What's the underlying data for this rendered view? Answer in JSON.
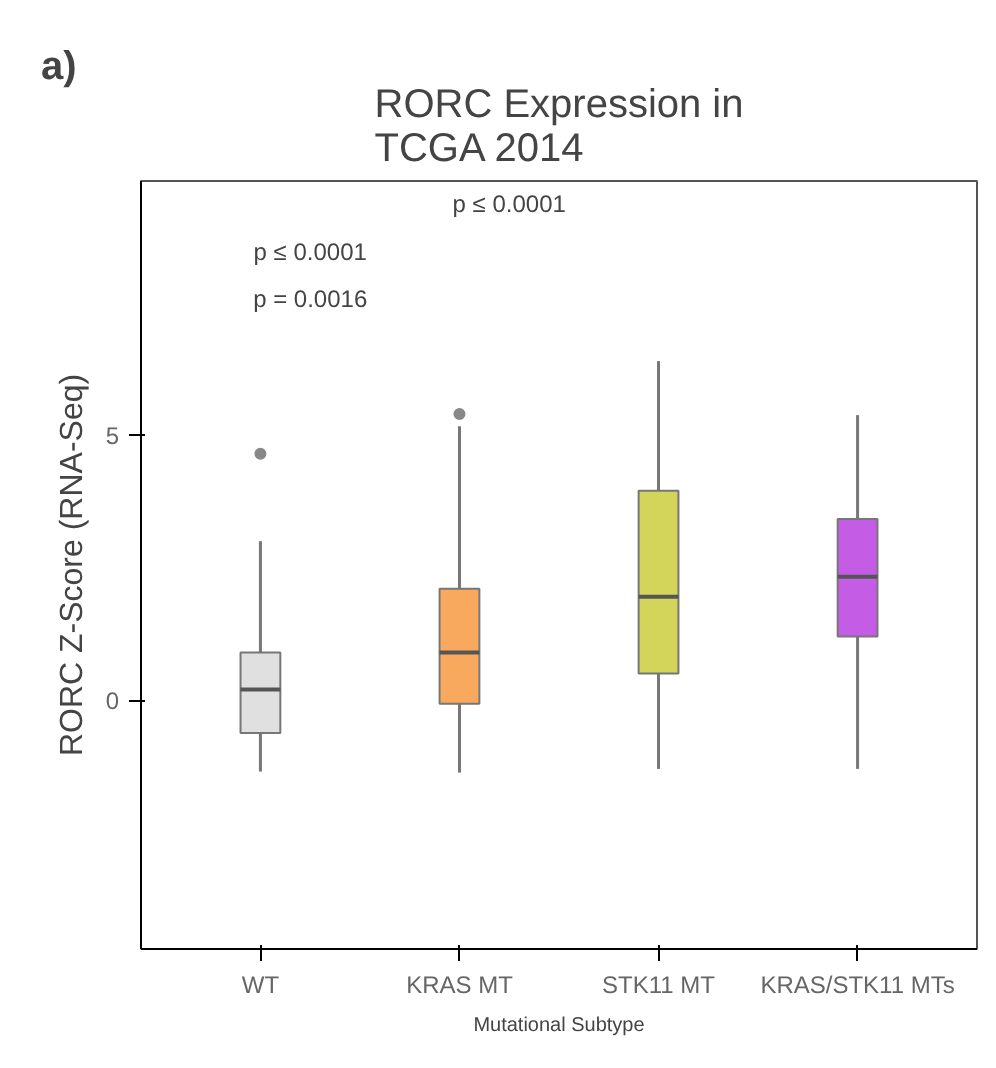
{
  "chart_data": {
    "type": "box",
    "title": "RORC Expression in\nTCGA 2014",
    "xlabel": "Mutational Subtype",
    "ylabel": "RORC Z-Score (RNA-Seq)",
    "categories": [
      "WT",
      "KRAS MT",
      "STK11 MT",
      "KRAS/STK11 MTs"
    ],
    "colors": [
      "#e0e0e0",
      "#f9a95e",
      "#d3d55a",
      "#c55ce6"
    ],
    "boxes": [
      {
        "low": -1.35,
        "q1": -0.62,
        "median": 0.2,
        "q3": 0.9,
        "high": 3.0,
        "outliers": [
          4.65
        ]
      },
      {
        "low": -1.37,
        "q1": -0.07,
        "median": 0.9,
        "q3": 2.1,
        "high": 5.17,
        "outliers": [
          5.4
        ]
      },
      {
        "low": -1.3,
        "q1": 0.5,
        "median": 1.95,
        "q3": 3.95,
        "high": 6.4
      },
      {
        "low": -1.3,
        "q1": 1.2,
        "median": 2.33,
        "q3": 3.42,
        "high": 5.38
      }
    ],
    "ylim": [
      -4.7,
      9.8
    ],
    "yticks": [
      0,
      5
    ],
    "grid": false,
    "annotations": [
      "a)",
      "p ≤ 0.0001",
      "p ≤ 0.0001",
      "p = 0.0016"
    ]
  }
}
